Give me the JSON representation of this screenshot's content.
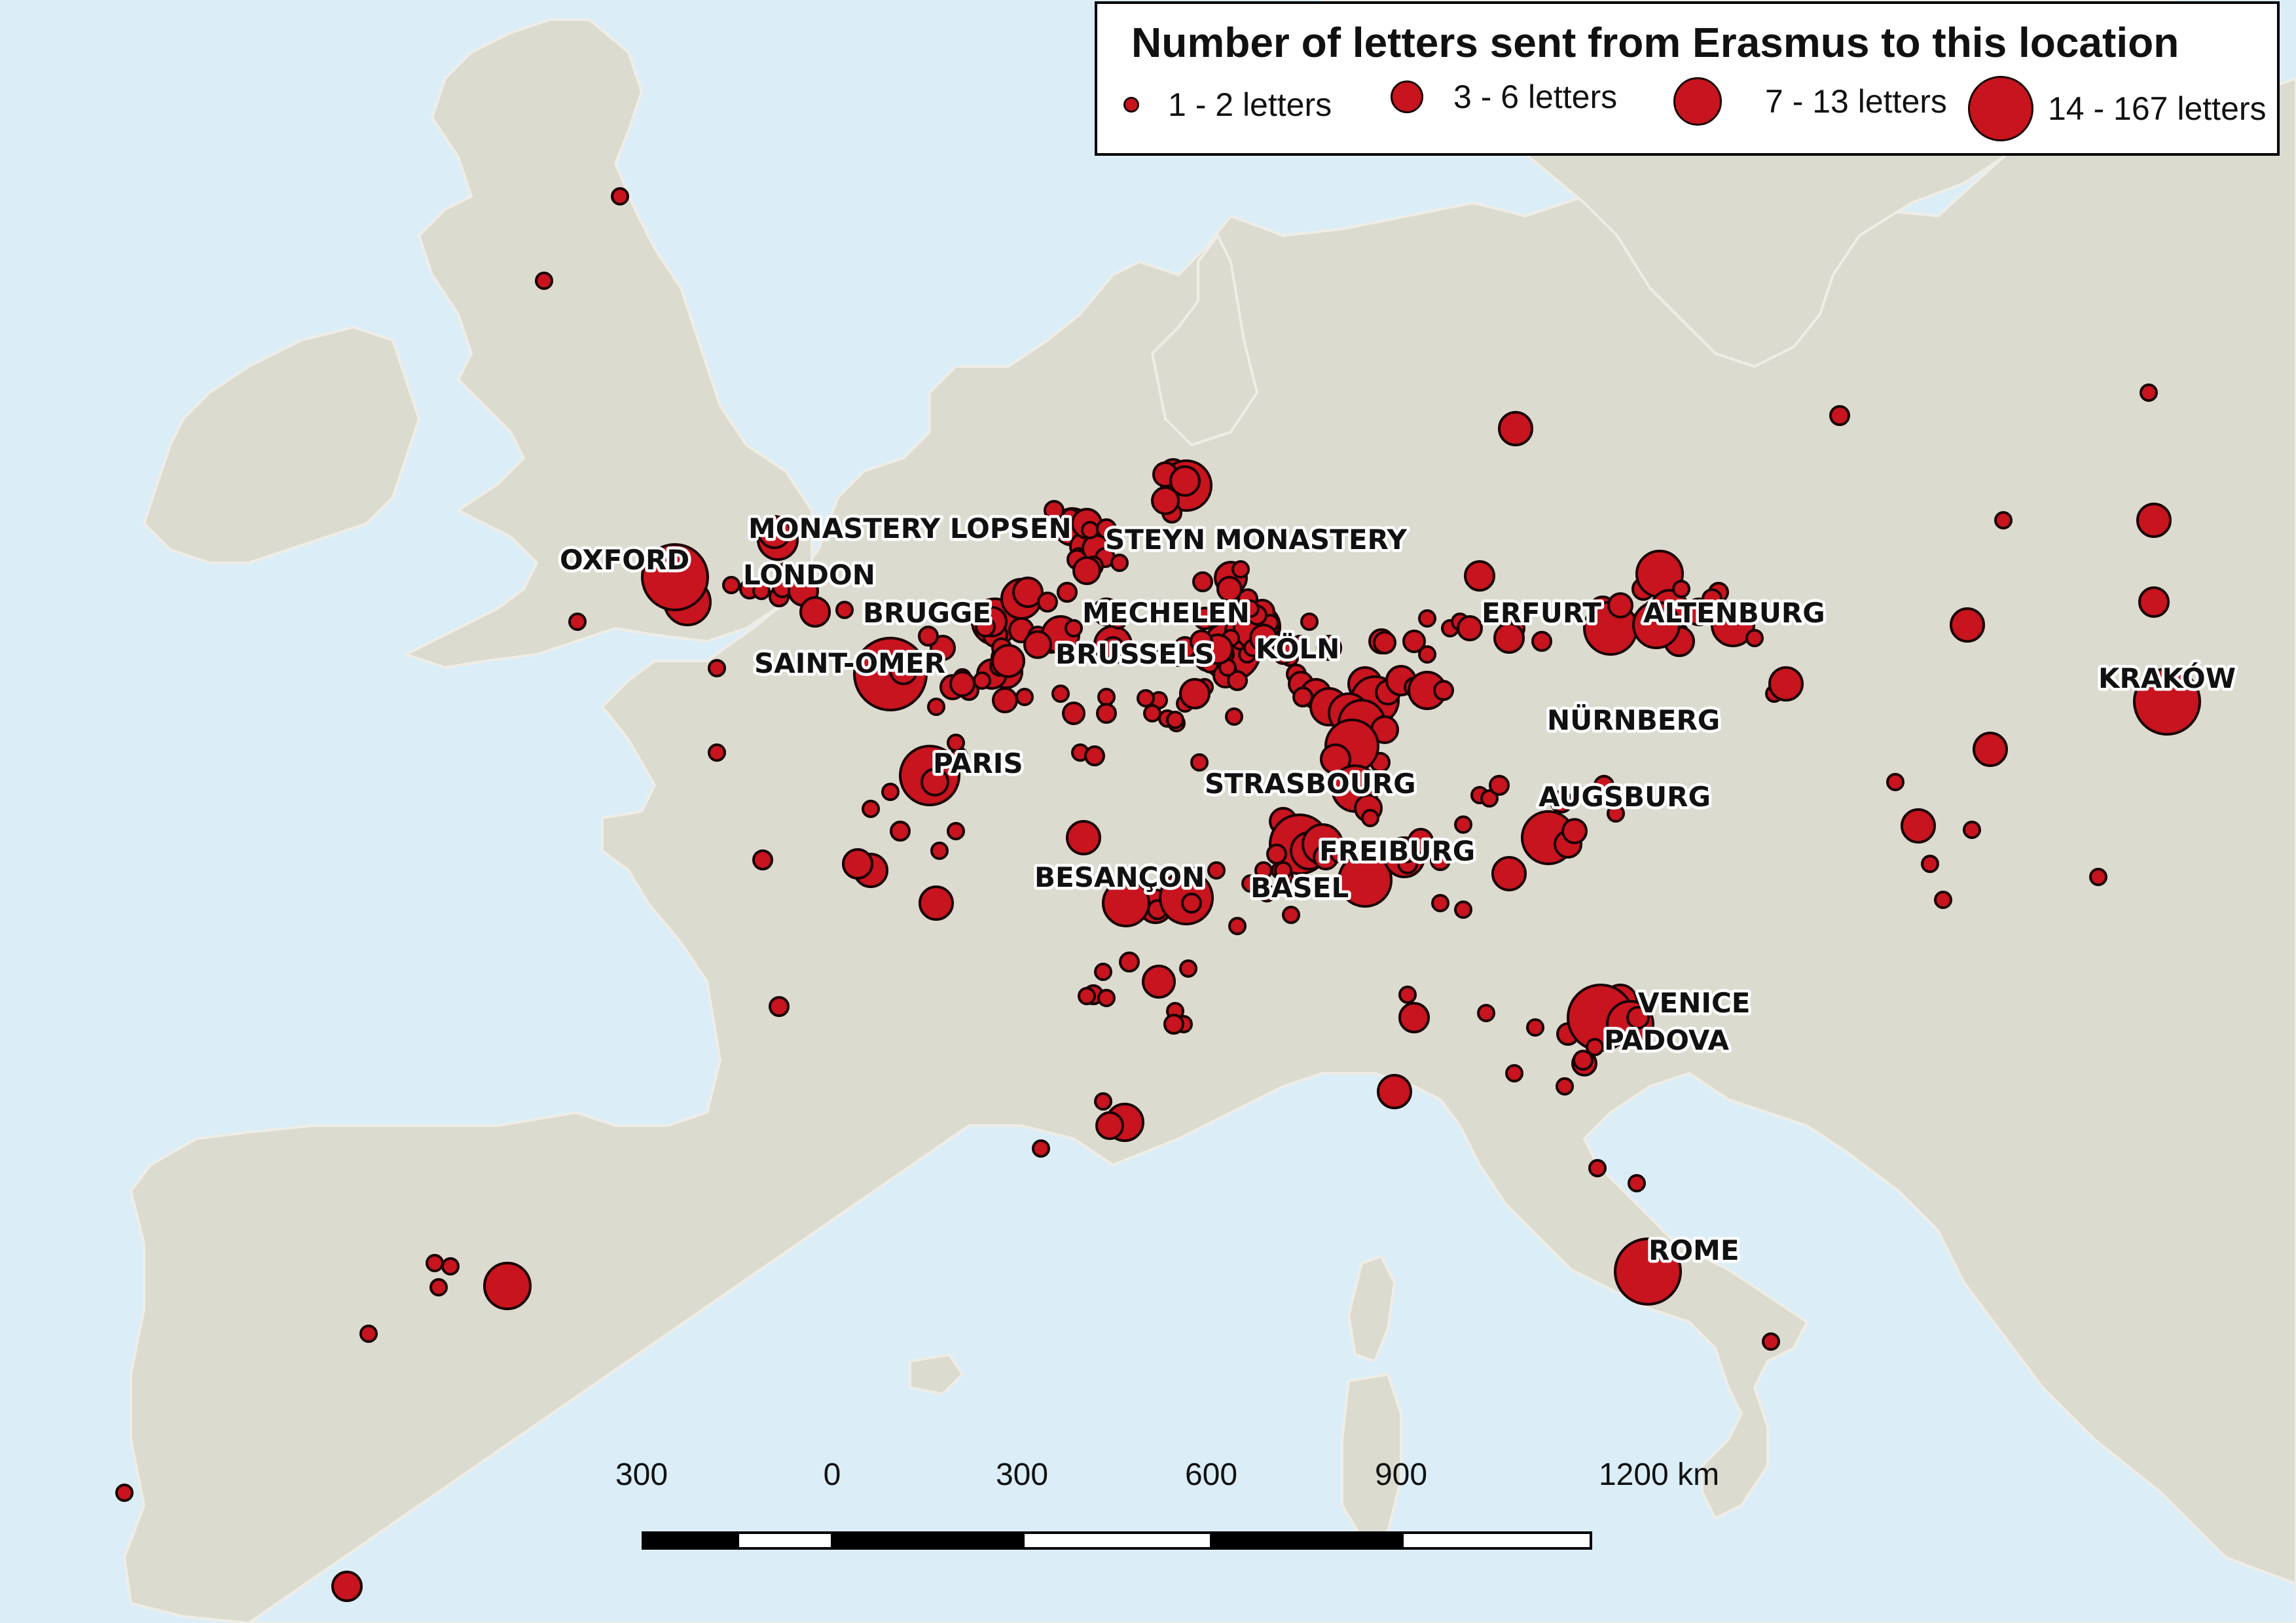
{
  "legend": {
    "title": "Number of letters sent from Erasmus to this location",
    "items": [
      {
        "label": "1 - 2 letters"
      },
      {
        "label": "3 - 6 letters"
      },
      {
        "label": "7 - 13  letters"
      },
      {
        "label": "14 - 167 letters"
      }
    ]
  },
  "scale": {
    "labels": [
      "300",
      "0",
      "300",
      "600",
      "900",
      "1200 km"
    ]
  },
  "colors": {
    "sea": "#dbeef8",
    "land": "#dcdbd0",
    "land_outline": "#efede6",
    "marker_fill": "#c8141e",
    "marker_stroke": "#1a0000",
    "label_halo": "#ffffff"
  },
  "places": [
    {
      "name": "OXFORD"
    },
    {
      "name": "LONDON"
    },
    {
      "name": "MONASTERY LOPSEN"
    },
    {
      "name": "BRUGGE"
    },
    {
      "name": "SAINT-OMER"
    },
    {
      "name": "STEYN MONASTERY"
    },
    {
      "name": "MECHELEN"
    },
    {
      "name": "BRUSSELS"
    },
    {
      "name": "KÖLN"
    },
    {
      "name": "PARIS"
    },
    {
      "name": "STRASBOURG"
    },
    {
      "name": "FREIBURG"
    },
    {
      "name": "BESANÇON"
    },
    {
      "name": "BASEL"
    },
    {
      "name": "ERFURT"
    },
    {
      "name": "ALTENBURG"
    },
    {
      "name": "NÜRNBERG"
    },
    {
      "name": "AUGSBURG"
    },
    {
      "name": "VENICE"
    },
    {
      "name": "PADOVA"
    },
    {
      "name": "ROME"
    },
    {
      "name": "KRAKÓW"
    }
  ]
}
